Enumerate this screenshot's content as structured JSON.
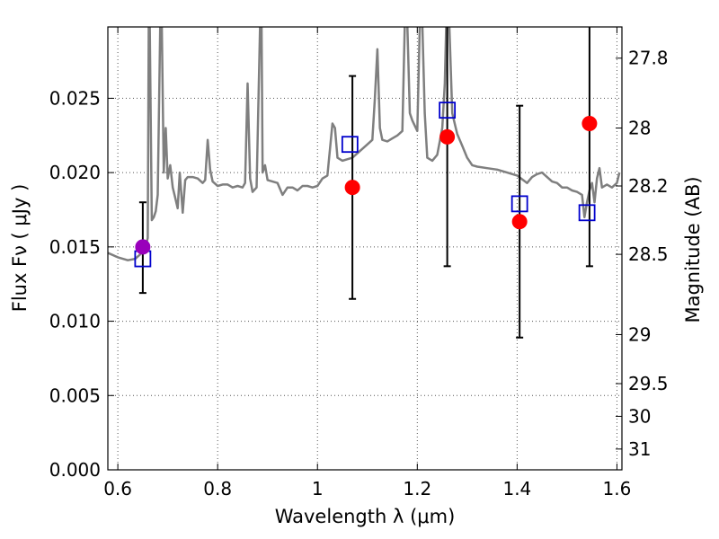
{
  "chart_data": {
    "type": "scatter",
    "xlabel": "Wavelength  λ (μm)",
    "ylabel": "Flux  Fν  ( μJy )",
    "y2label": "Magnitude (AB)",
    "xlim": [
      0.58,
      1.61
    ],
    "ylim": [
      0.0,
      0.0298
    ],
    "grid": true,
    "x_ticks": [
      {
        "value": 0.6,
        "label": "0.6"
      },
      {
        "value": 0.8,
        "label": "0.8"
      },
      {
        "value": 1.0,
        "label": "1"
      },
      {
        "value": 1.2,
        "label": "1.2"
      },
      {
        "value": 1.4,
        "label": "1.4"
      },
      {
        "value": 1.6,
        "label": "1.6"
      }
    ],
    "y_ticks": [
      {
        "value": 0.0,
        "label": "0.000"
      },
      {
        "value": 0.005,
        "label": "0.005"
      },
      {
        "value": 0.01,
        "label": "0.010"
      },
      {
        "value": 0.015,
        "label": "0.015"
      },
      {
        "value": 0.02,
        "label": "0.020"
      },
      {
        "value": 0.025,
        "label": "0.025"
      }
    ],
    "y2_ticks": [
      {
        "flux": 0.0277,
        "label": "27.8"
      },
      {
        "flux": 0.023,
        "label": "28"
      },
      {
        "flux": 0.0191,
        "label": "28.2"
      },
      {
        "flux": 0.0145,
        "label": "28.5"
      },
      {
        "flux": 0.0091,
        "label": "29"
      },
      {
        "flux": 0.0058,
        "label": "29.5"
      },
      {
        "flux": 0.0036,
        "label": "30"
      },
      {
        "flux": 0.0014,
        "label": "31"
      }
    ],
    "observed_points": [
      {
        "x": 0.65,
        "y": 0.015,
        "yerr_low": 0.0119,
        "yerr_high": 0.018,
        "color": "#9900bb"
      },
      {
        "x": 1.07,
        "y": 0.019,
        "yerr_low": 0.0115,
        "yerr_high": 0.0265,
        "color": "#ff0000"
      },
      {
        "x": 1.26,
        "y": 0.0224,
        "yerr_low": 0.0137,
        "yerr_high": 0.031,
        "color": "#ff0000"
      },
      {
        "x": 1.405,
        "y": 0.0167,
        "yerr_low": 0.0089,
        "yerr_high": 0.0245,
        "color": "#ff0000"
      },
      {
        "x": 1.545,
        "y": 0.0233,
        "yerr_low": 0.0137,
        "yerr_high": 0.031,
        "color": "#ff0000"
      }
    ],
    "model_points": [
      {
        "x": 0.65,
        "y": 0.0142
      },
      {
        "x": 1.065,
        "y": 0.0219
      },
      {
        "x": 1.26,
        "y": 0.0242
      },
      {
        "x": 1.405,
        "y": 0.0179
      },
      {
        "x": 1.54,
        "y": 0.0173
      }
    ],
    "spectrum": [
      [
        0.58,
        0.0146
      ],
      [
        0.6,
        0.0143
      ],
      [
        0.62,
        0.0141
      ],
      [
        0.635,
        0.0142
      ],
      [
        0.645,
        0.0145
      ],
      [
        0.655,
        0.0149
      ],
      [
        0.66,
        0.0156
      ],
      [
        0.662,
        0.03
      ],
      [
        0.664,
        0.03
      ],
      [
        0.668,
        0.0168
      ],
      [
        0.672,
        0.017
      ],
      [
        0.676,
        0.0174
      ],
      [
        0.68,
        0.0185
      ],
      [
        0.685,
        0.03
      ],
      [
        0.688,
        0.03
      ],
      [
        0.692,
        0.02
      ],
      [
        0.696,
        0.023
      ],
      [
        0.7,
        0.0196
      ],
      [
        0.705,
        0.0205
      ],
      [
        0.71,
        0.019
      ],
      [
        0.715,
        0.0183
      ],
      [
        0.72,
        0.0176
      ],
      [
        0.724,
        0.02
      ],
      [
        0.73,
        0.0173
      ],
      [
        0.735,
        0.0195
      ],
      [
        0.74,
        0.0197
      ],
      [
        0.75,
        0.0197
      ],
      [
        0.76,
        0.0196
      ],
      [
        0.77,
        0.0193
      ],
      [
        0.775,
        0.0195
      ],
      [
        0.78,
        0.0222
      ],
      [
        0.785,
        0.0202
      ],
      [
        0.79,
        0.0194
      ],
      [
        0.8,
        0.0191
      ],
      [
        0.81,
        0.0192
      ],
      [
        0.82,
        0.0192
      ],
      [
        0.83,
        0.019
      ],
      [
        0.84,
        0.0191
      ],
      [
        0.85,
        0.019
      ],
      [
        0.855,
        0.0193
      ],
      [
        0.86,
        0.026
      ],
      [
        0.865,
        0.0196
      ],
      [
        0.87,
        0.0187
      ],
      [
        0.878,
        0.019
      ],
      [
        0.885,
        0.03
      ],
      [
        0.888,
        0.03
      ],
      [
        0.89,
        0.02
      ],
      [
        0.895,
        0.0205
      ],
      [
        0.9,
        0.0195
      ],
      [
        0.92,
        0.0193
      ],
      [
        0.93,
        0.0185
      ],
      [
        0.94,
        0.019
      ],
      [
        0.95,
        0.019
      ],
      [
        0.96,
        0.0188
      ],
      [
        0.97,
        0.0191
      ],
      [
        0.98,
        0.0191
      ],
      [
        0.99,
        0.019
      ],
      [
        1.0,
        0.0191
      ],
      [
        1.01,
        0.0196
      ],
      [
        1.02,
        0.0198
      ],
      [
        1.03,
        0.0233
      ],
      [
        1.035,
        0.023
      ],
      [
        1.04,
        0.021
      ],
      [
        1.05,
        0.0208
      ],
      [
        1.07,
        0.021
      ],
      [
        1.08,
        0.0213
      ],
      [
        1.09,
        0.0216
      ],
      [
        1.1,
        0.0219
      ],
      [
        1.11,
        0.0222
      ],
      [
        1.115,
        0.025
      ],
      [
        1.12,
        0.0283
      ],
      [
        1.125,
        0.023
      ],
      [
        1.13,
        0.0222
      ],
      [
        1.14,
        0.0221
      ],
      [
        1.15,
        0.0223
      ],
      [
        1.16,
        0.0225
      ],
      [
        1.17,
        0.0228
      ],
      [
        1.175,
        0.03
      ],
      [
        1.18,
        0.03
      ],
      [
        1.185,
        0.024
      ],
      [
        1.19,
        0.0235
      ],
      [
        1.2,
        0.0228
      ],
      [
        1.205,
        0.03
      ],
      [
        1.21,
        0.03
      ],
      [
        1.215,
        0.024
      ],
      [
        1.22,
        0.021
      ],
      [
        1.23,
        0.0208
      ],
      [
        1.24,
        0.0212
      ],
      [
        1.25,
        0.023
      ],
      [
        1.255,
        0.026
      ],
      [
        1.258,
        0.03
      ],
      [
        1.264,
        0.03
      ],
      [
        1.27,
        0.024
      ],
      [
        1.28,
        0.0226
      ],
      [
        1.29,
        0.0218
      ],
      [
        1.3,
        0.021
      ],
      [
        1.31,
        0.0205
      ],
      [
        1.32,
        0.0204
      ],
      [
        1.34,
        0.0203
      ],
      [
        1.36,
        0.0202
      ],
      [
        1.38,
        0.02
      ],
      [
        1.4,
        0.0198
      ],
      [
        1.42,
        0.0193
      ],
      [
        1.43,
        0.0197
      ],
      [
        1.44,
        0.0199
      ],
      [
        1.45,
        0.02
      ],
      [
        1.46,
        0.0197
      ],
      [
        1.47,
        0.0194
      ],
      [
        1.48,
        0.0193
      ],
      [
        1.49,
        0.019
      ],
      [
        1.5,
        0.019
      ],
      [
        1.51,
        0.0188
      ],
      [
        1.52,
        0.0187
      ],
      [
        1.53,
        0.0185
      ],
      [
        1.535,
        0.017
      ],
      [
        1.54,
        0.018
      ],
      [
        1.545,
        0.0188
      ],
      [
        1.55,
        0.0193
      ],
      [
        1.555,
        0.018
      ],
      [
        1.56,
        0.0196
      ],
      [
        1.565,
        0.0203
      ],
      [
        1.57,
        0.019
      ],
      [
        1.58,
        0.0192
      ],
      [
        1.59,
        0.019
      ],
      [
        1.6,
        0.0193
      ],
      [
        1.605,
        0.02
      ]
    ]
  },
  "colors": {
    "spectrum": "#7f7f7f",
    "model_marker": "#0000cc",
    "error_bar": "#000000",
    "grid": "#555555"
  }
}
